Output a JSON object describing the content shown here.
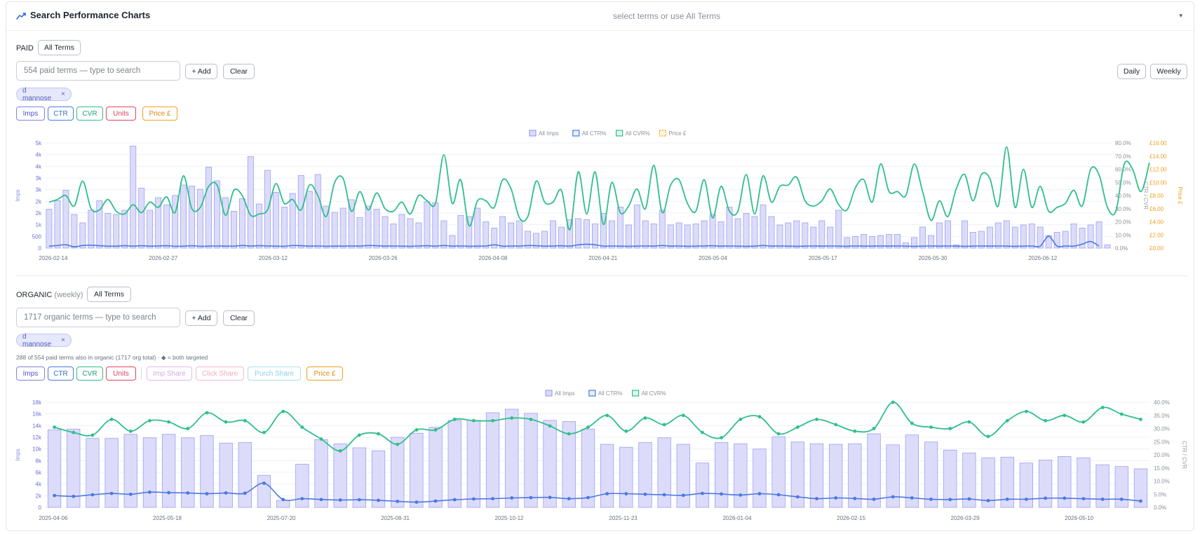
{
  "header": {
    "title": "Search Performance Charts",
    "selector_placeholder": "select terms or use All Terms",
    "chevron": "▾"
  },
  "colors": {
    "imps_fill": "#dcdcfa",
    "imps_stroke": "#9c9ff0",
    "ctr": "#4a78e0",
    "cvr": "#2fbf8a",
    "units": "#e0445e",
    "price": "#f0a020",
    "imp_share": "#e3b8f0",
    "click_share": "#f7b8c8",
    "purch_share": "#a8e0ec"
  },
  "paid": {
    "label": "PAID",
    "all_terms": "All Terms",
    "search_placeholder": "554 paid terms — type to search",
    "add": "+ Add",
    "clear": "Clear",
    "daily": "Daily",
    "weekly": "Weekly",
    "chip": {
      "label": "d mannose",
      "close": "×"
    },
    "toggles": [
      "Imps",
      "CTR",
      "CVR",
      "Units",
      "Price £"
    ]
  },
  "organic": {
    "label": "ORGANIC",
    "label_suffix": "(weekly)",
    "all_terms": "All Terms",
    "search_placeholder": "1717 organic terms — type to search",
    "add": "+ Add",
    "clear": "Clear",
    "chip": {
      "label": "d mannose",
      "close": "×"
    },
    "note": "288 of 554 paid terms also in organic (1717 org total) · ◆ = both targeted",
    "toggles": [
      "Imps",
      "CTR",
      "CVR",
      "Units"
    ],
    "share_toggles": [
      "Imp Share",
      "Click Share",
      "Purch Share"
    ],
    "price_toggle": "Price £"
  },
  "chart_data": [
    {
      "type": "bar+line",
      "legend": [
        "All Imps",
        "All CTR%",
        "All CVR%",
        "Price £"
      ],
      "ylabel": "Imps",
      "y2label": "CTR / CVR",
      "y3label": "Price £",
      "ylim": [
        0,
        5000
      ],
      "y2lim": [
        0,
        80
      ],
      "y3lim": [
        0,
        16
      ],
      "yticks": [
        "0",
        "500",
        "1k",
        "2k",
        "2k",
        "3k",
        "3k",
        "4k",
        "4k",
        "5k"
      ],
      "y2ticks": [
        "0.0%",
        "10.0%",
        "20.0%",
        "30.0%",
        "40.0%",
        "50.0%",
        "60.0%",
        "70.0%",
        "80.0%"
      ],
      "y3ticks": [
        "£0.00",
        "£2.00",
        "£4.00",
        "£6.00",
        "£8.00",
        "£10.00",
        "£12.00",
        "£14.00",
        "£16.00"
      ],
      "xticks": [
        "2026-02-14",
        "2026-02-27",
        "2026-03-12",
        "2026-03-26",
        "2026-04-08",
        "2026-04-21",
        "2026-05-04",
        "2026-05-17",
        "2026-05-30",
        "2026-06-12"
      ],
      "series": [
        {
          "name": "All Imps",
          "values": [
            1850,
            2250,
            2750,
            1600,
            1200,
            1800,
            2250,
            1650,
            1600,
            1800,
            4850,
            2850,
            1800,
            2400,
            2050,
            2500,
            3000,
            2950,
            2800,
            3850,
            3200,
            2400,
            1750,
            2350,
            4350,
            2100,
            3700,
            2650,
            1950,
            2600,
            3450,
            2700,
            3500,
            2000,
            1700,
            1900,
            2300,
            1450,
            2000,
            1850,
            1500,
            1150,
            1600,
            1400,
            1200,
            2200,
            2150,
            1300,
            600,
            1550,
            1500,
            1900,
            1250,
            950,
            1500,
            1200,
            1300,
            800,
            700,
            800,
            1300,
            1000,
            1350,
            1400,
            1350,
            1150,
            1650,
            1300,
            1950,
            1100,
            2050,
            1300,
            1150,
            1800,
            1100,
            1200,
            1100,
            1150,
            1300,
            1600,
            1250,
            1950,
            1400,
            1650,
            1500,
            2050,
            1500,
            1100,
            1200,
            1300,
            1200,
            1000,
            1300,
            1000,
            1800,
            500,
            550,
            650,
            550,
            600,
            650,
            650,
            250,
            500,
            1000,
            600,
            1200,
            1300,
            150,
            1300,
            750,
            800,
            1000,
            1200,
            1300,
            1000,
            1100,
            1150,
            1000,
            600,
            750,
            800,
            1150,
            950,
            1100,
            1250,
            150
          ]
        },
        {
          "name": "All CTR%",
          "values": [
            1.5,
            2.0,
            2.5,
            1.0,
            2.0,
            2.2,
            1.8,
            1.5,
            1.5,
            1.8,
            1.5,
            1.8,
            1.5,
            1.6,
            1.8,
            1.4,
            1.5,
            1.8,
            1.4,
            1.5,
            1.6,
            1.5,
            1.5,
            2.0,
            1.6,
            1.8,
            1.6,
            1.5,
            1.4,
            2.0,
            1.8,
            1.5,
            1.6,
            1.4,
            1.5,
            1.5,
            1.6,
            1.5,
            2.0,
            1.8,
            1.5,
            1.6,
            1.5,
            1.4,
            1.6,
            1.8,
            1.5,
            2.0,
            1.5,
            1.6,
            1.4,
            1.5,
            1.6,
            2.5,
            1.5,
            1.6,
            1.5,
            2.0,
            1.8,
            1.5,
            1.6,
            1.8,
            1.5,
            2.5,
            3.0,
            2.5,
            1.5,
            1.6,
            1.5,
            1.4,
            1.5,
            1.6,
            1.5,
            2.0,
            1.5,
            1.6,
            1.4,
            1.5,
            1.6,
            1.8,
            1.5,
            1.6,
            1.5,
            1.4,
            1.5,
            2.0,
            1.5,
            1.6,
            1.5,
            1.4,
            1.5,
            1.6,
            1.5,
            1.6,
            1.5,
            1.4,
            1.6,
            1.5,
            1.5,
            1.6,
            1.5,
            1.6,
            1.5,
            1.4,
            1.5,
            1.6,
            1.5,
            1.6,
            1.5,
            1.4,
            1.5,
            1.6,
            1.5,
            1.6,
            1.5,
            1.4,
            1.5,
            1.6,
            1.5,
            9.0,
            1.5,
            1.6,
            1.5,
            3.0,
            5.0,
            1.5
          ]
        },
        {
          "name": "All CVR%",
          "values": [
            35,
            37,
            40,
            32,
            51,
            30,
            29,
            37,
            28,
            26,
            33,
            27,
            35,
            31,
            39,
            27,
            55,
            30,
            31,
            47,
            48,
            25,
            44,
            40,
            25,
            26,
            29,
            49,
            34,
            37,
            29,
            48,
            40,
            24,
            50,
            53,
            28,
            43,
            29,
            42,
            30,
            28,
            35,
            26,
            40,
            36,
            34,
            71,
            34,
            52,
            17,
            36,
            36,
            31,
            52,
            45,
            23,
            24,
            51,
            35,
            35,
            44,
            14,
            58,
            26,
            58,
            18,
            50,
            27,
            32,
            45,
            30,
            63,
            27,
            48,
            52,
            34,
            28,
            52,
            23,
            47,
            28,
            28,
            56,
            26,
            55,
            35,
            47,
            48,
            54,
            36,
            32,
            36,
            45,
            33,
            29,
            46,
            52,
            35,
            64,
            43,
            43,
            40,
            64,
            43,
            21,
            36,
            24,
            45,
            56,
            36,
            56,
            53,
            32,
            77,
            31,
            60,
            31,
            47,
            28,
            31,
            34,
            44,
            32,
            60,
            56,
            31,
            28,
            64,
            60,
            43,
            65
          ]
        }
      ]
    },
    {
      "type": "bar+line",
      "legend": [
        "All Imps",
        "All CTR%",
        "All CVR%"
      ],
      "ylabel": "Imps",
      "y2label": "CTR / CVR",
      "ylim": [
        0,
        18000
      ],
      "y2lim": [
        0,
        40
      ],
      "yticks": [
        "0",
        "2k",
        "4k",
        "6k",
        "8k",
        "10k",
        "12k",
        "14k",
        "16k",
        "18k"
      ],
      "y2ticks": [
        "0.0%",
        "5.0%",
        "10.0%",
        "15.0%",
        "20.0%",
        "25.0%",
        "30.0%",
        "35.0%",
        "40.0%"
      ],
      "xticks": [
        "2025-04-06",
        "2025-05-18",
        "2025-07-20",
        "2025-08-31",
        "2025-10-12",
        "2025-11-23",
        "2026-01-04",
        "2026-02-15",
        "2026-03-29",
        "2026-05-10"
      ],
      "series": [
        {
          "name": "All Imps",
          "values": [
            13300,
            13400,
            11800,
            11800,
            12500,
            11900,
            12500,
            11900,
            12300,
            11000,
            11100,
            5500,
            1200,
            7400,
            11600,
            10900,
            10200,
            9700,
            12000,
            12700,
            13700,
            14900,
            14900,
            16200,
            16800,
            16100,
            14900,
            14700,
            13400,
            10800,
            10300,
            11100,
            11900,
            10800,
            7600,
            11100,
            10900,
            10000,
            12100,
            11200,
            10900,
            10800,
            10900,
            12600,
            10700,
            12400,
            11200,
            9800,
            9300,
            8500,
            8600,
            7600,
            8100,
            8700,
            8500,
            7300,
            7000,
            6600
          ]
        },
        {
          "name": "All CTR%",
          "values": [
            4.5,
            4.2,
            4.8,
            5.3,
            5.0,
            5.8,
            5.6,
            5.5,
            5.2,
            5.5,
            5.4,
            9.2,
            3.0,
            3.3,
            3.0,
            2.8,
            2.9,
            2.7,
            2.3,
            2.0,
            2.4,
            2.9,
            3.2,
            3.3,
            3.6,
            3.7,
            3.8,
            3.3,
            3.7,
            5.2,
            5.2,
            5.0,
            4.8,
            4.6,
            5.3,
            5.1,
            4.7,
            5.2,
            4.8,
            4.0,
            3.3,
            3.6,
            3.4,
            3.1,
            4.0,
            3.6,
            3.1,
            3.0,
            3.2,
            2.6,
            3.1,
            3.1,
            3.5,
            3.5,
            3.3,
            3.1,
            3.1,
            2.4
          ]
        },
        {
          "name": "All CVR%",
          "values": [
            30.5,
            28.5,
            27.5,
            33.5,
            29,
            33,
            32.5,
            30,
            36,
            32.5,
            33,
            28.5,
            36.5,
            30.5,
            26,
            21.5,
            27.5,
            28,
            24,
            29.5,
            29.5,
            33.5,
            33,
            33,
            34,
            33.5,
            31,
            28,
            30.5,
            35,
            29,
            34,
            31.5,
            35,
            28.5,
            26.5,
            33.5,
            34.5,
            28,
            30.5,
            33.5,
            31.5,
            29,
            30,
            40,
            32,
            30.5,
            30,
            32.5,
            27,
            33,
            36.5,
            33,
            35,
            32.5,
            38,
            35.5,
            33.5
          ]
        }
      ]
    }
  ]
}
